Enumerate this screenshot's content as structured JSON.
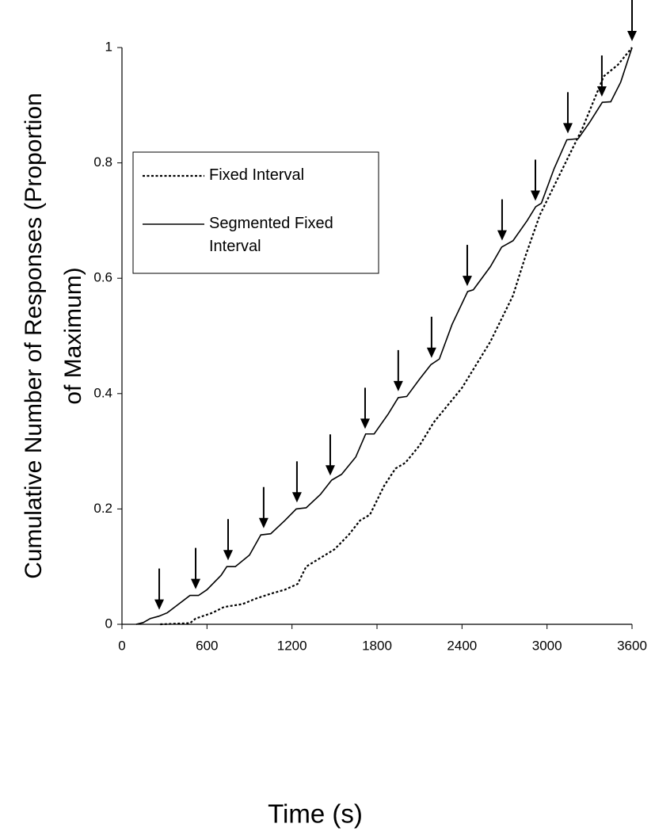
{
  "chart_data": {
    "type": "line",
    "xlabel": "Time (s)",
    "ylabel": [
      "Cumulative Number of Responses (Proportion",
      "of Maximum)"
    ],
    "xlim": [
      0,
      3600
    ],
    "xticks": [
      0,
      600,
      1200,
      1800,
      2400,
      3000,
      3600
    ],
    "ylim": [
      0,
      1
    ],
    "yticks": [
      0,
      0.2,
      0.4,
      0.6,
      0.8,
      1
    ],
    "grid": false,
    "legend": "upper left",
    "arrows_x": [
      263,
      520,
      749,
      1000,
      1235,
      1470,
      1716,
      1950,
      2185,
      2437,
      2683,
      2918,
      3147,
      3387,
      3600
    ],
    "series": [
      {
        "name": "Fixed Interval",
        "color": "#000000",
        "dash": true,
        "x": [
          270,
          480,
          520,
          640,
          720,
          850,
          950,
          1050,
          1150,
          1240,
          1300,
          1400,
          1500,
          1600,
          1680,
          1750,
          1850,
          1930,
          2000,
          2100,
          2200,
          2300,
          2400,
          2500,
          2600,
          2680,
          2760,
          2850,
          2950,
          3050,
          3150,
          3250,
          3350,
          3400,
          3500,
          3600
        ],
        "values": [
          0,
          0.002,
          0.01,
          0.02,
          0.03,
          0.035,
          0.045,
          0.053,
          0.06,
          0.07,
          0.1,
          0.115,
          0.13,
          0.155,
          0.18,
          0.19,
          0.24,
          0.27,
          0.28,
          0.31,
          0.35,
          0.38,
          0.41,
          0.45,
          0.49,
          0.53,
          0.57,
          0.64,
          0.71,
          0.76,
          0.81,
          0.86,
          0.92,
          0.95,
          0.97,
          1.0
        ]
      },
      {
        "name": "Segmented Fixed Interval",
        "color": "#000000",
        "dash": false,
        "x": [
          100,
          150,
          200,
          260,
          320,
          400,
          480,
          540,
          600,
          700,
          740,
          800,
          900,
          980,
          1050,
          1150,
          1230,
          1300,
          1400,
          1480,
          1550,
          1650,
          1720,
          1780,
          1880,
          1950,
          2010,
          2100,
          2180,
          2240,
          2330,
          2440,
          2480,
          2600,
          2680,
          2760,
          2860,
          2920,
          2960,
          3050,
          3140,
          3220,
          3300,
          3390,
          3450,
          3520,
          3600
        ],
        "values": [
          0,
          0.003,
          0.01,
          0.014,
          0.02,
          0.035,
          0.05,
          0.05,
          0.06,
          0.085,
          0.1,
          0.1,
          0.12,
          0.155,
          0.157,
          0.18,
          0.2,
          0.202,
          0.225,
          0.25,
          0.26,
          0.29,
          0.33,
          0.33,
          0.365,
          0.393,
          0.395,
          0.425,
          0.45,
          0.46,
          0.52,
          0.577,
          0.58,
          0.62,
          0.654,
          0.665,
          0.7,
          0.724,
          0.73,
          0.79,
          0.84,
          0.842,
          0.87,
          0.905,
          0.906,
          0.94,
          1.0
        ]
      }
    ]
  }
}
